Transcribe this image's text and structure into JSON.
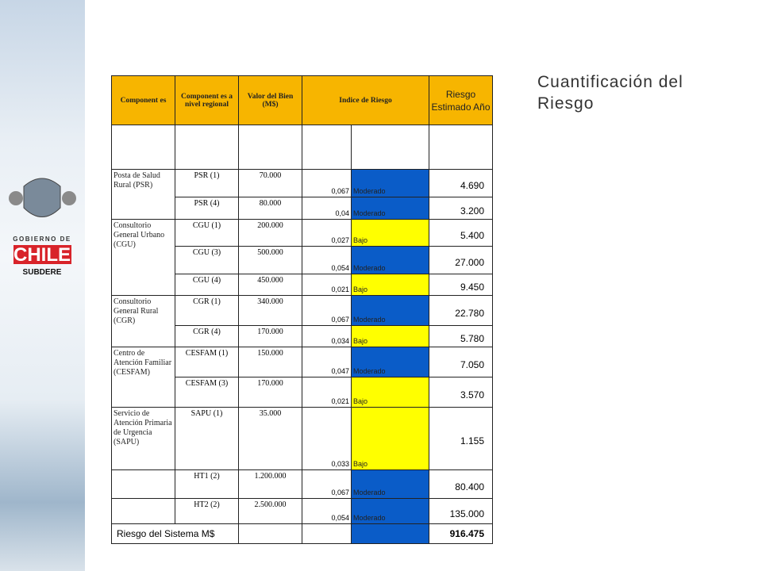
{
  "title": "Cuantificación del Riesgo",
  "logo": {
    "line1": "GOBIERNO DE",
    "line2": "CHILE",
    "line3": "SUBDERE"
  },
  "table": {
    "header": [
      "Component es",
      "Component es a nivel regional",
      "Valor del Bien (M$)",
      "Indice de Riesgo",
      "Riesgo Estimado Año"
    ],
    "header_color": "#f7b500",
    "groups": [
      {
        "label": "Posta de Salud Rural (PSR)",
        "rows": [
          {
            "component": "PSR (1)",
            "value": "70.000",
            "index": "0,067",
            "level": "Moderado",
            "color": "#0a5cc8",
            "risk": "4.690"
          },
          {
            "component": "PSR (4)",
            "value": "80.000",
            "index": "0,04",
            "level": "Moderado",
            "color": "#0a5cc8",
            "risk": "3.200"
          }
        ]
      },
      {
        "label": "Consultorio General Urbano (CGU)",
        "rows": [
          {
            "component": "CGU (1)",
            "value": "200.000",
            "index": "0,027",
            "level": "Bajo",
            "color": "#ffff00",
            "risk": "5.400"
          },
          {
            "component": "CGU (3)",
            "value": "500.000",
            "index": "0,054",
            "level": "Moderado",
            "color": "#0a5cc8",
            "risk": "27.000"
          },
          {
            "component": "CGU (4)",
            "value": "450.000",
            "index": "0,021",
            "level": "Bajo",
            "color": "#ffff00",
            "risk": "9.450"
          }
        ]
      },
      {
        "label": "Consultorio General Rural (CGR)",
        "rows": [
          {
            "component": "CGR (1)",
            "value": "340.000",
            "index": "0,067",
            "level": "Moderado",
            "color": "#0a5cc8",
            "risk": "22.780"
          },
          {
            "component": "CGR (4)",
            "value": "170.000",
            "index": "0,034",
            "level": "Bajo",
            "color": "#ffff00",
            "risk": "5.780"
          }
        ]
      },
      {
        "label": "Centro de Atención Familiar (CESFAM)",
        "rows": [
          {
            "component": "CESFAM (1)",
            "value": "150.000",
            "index": "0,047",
            "level": "Moderado",
            "color": "#0a5cc8",
            "risk": "7.050"
          },
          {
            "component": "CESFAM (3)",
            "value": "170.000",
            "index": "0,021",
            "level": "Bajo",
            "color": "#ffff00",
            "risk": "3.570"
          }
        ]
      },
      {
        "label": "Servicio de Atención Primaria de Urgencia (SAPU)",
        "rows": [
          {
            "component": "SAPU (1)",
            "value": "35.000",
            "index": "0,033",
            "level": "Bajo",
            "color": "#ffff00",
            "risk": "1.155"
          }
        ]
      },
      {
        "rows": [
          {
            "component": "HT1 (2)",
            "value": "1.200.000",
            "index": "0,067",
            "level": "Moderado",
            "color": "#0a5cc8",
            "risk": "80.400"
          }
        ]
      },
      {
        "rows": [
          {
            "component": "HT2 (2)",
            "value": "2.500.000",
            "index": "0,054",
            "level": "Moderado",
            "color": "#0a5cc8",
            "risk": "135.000"
          }
        ]
      }
    ],
    "total": {
      "label": "Riesgo del Sistema M$",
      "value": "916.475",
      "color": "#0a5cc8"
    }
  }
}
